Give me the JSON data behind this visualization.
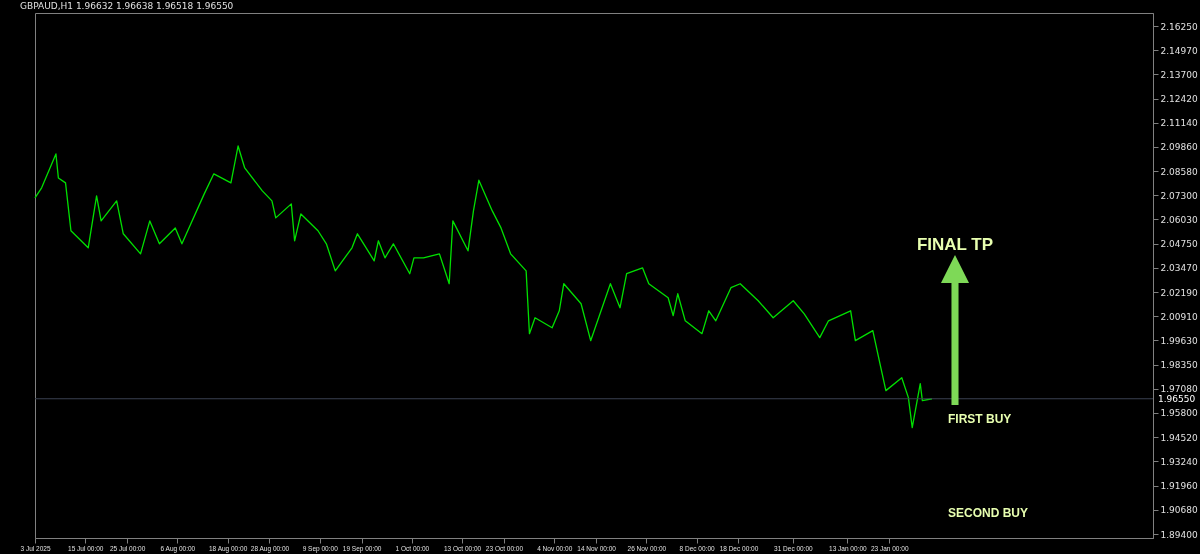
{
  "chart_data": {
    "type": "line",
    "title": "GBPAUD,H1  1.96632 1.96638 1.96518 1.96550",
    "x": [
      "2025-07-03T00:00",
      "2025-07-04T14:00",
      "2025-07-08T00:00",
      "2025-07-08T14:00",
      "2025-07-10T07:00",
      "2025-07-11T14:00",
      "2025-07-15T17:00",
      "2025-07-17T17:00",
      "2025-07-18T19:00",
      "2025-07-22T12:00",
      "2025-07-24T02:00",
      "2025-07-28T05:00",
      "2025-07-30T10:00",
      "2025-08-01T17:00",
      "2025-08-05T12:00",
      "2025-08-07T02:00",
      "2025-08-12T10:00",
      "2025-08-14T17:00",
      "2025-08-18T19:00",
      "2025-08-20T12:00",
      "2025-08-22T02:00",
      "2025-08-26T07:00",
      "2025-08-28T14:00",
      "2025-08-29T12:00",
      "2025-09-02T05:00",
      "2025-09-03T00:00",
      "2025-09-04T12:00",
      "2025-09-08T14:00",
      "2025-09-10T14:00",
      "2025-09-12T17:00",
      "2025-09-16T17:00",
      "2025-09-18T00:00",
      "2025-09-22T00:00",
      "2025-09-23T00:00",
      "2025-09-24T14:00",
      "2025-09-26T14:00",
      "2025-09-30T12:00",
      "2025-10-01T12:00",
      "2025-10-03T19:00",
      "2025-10-07T14:00",
      "2025-10-09T22:00",
      "2025-10-10T19:00",
      "2025-10-14T10:00",
      "2025-10-15T17:00",
      "2025-10-17T00:00",
      "2025-10-20T05:00",
      "2025-10-22T07:00",
      "2025-10-24T14:00",
      "2025-10-28T07:00",
      "2025-10-29T02:00",
      "2025-10-30T10:00",
      "2025-11-03T12:00",
      "2025-11-05T05:00",
      "2025-11-06T07:00",
      "2025-11-10T10:00",
      "2025-11-12T17:00",
      "2025-11-17T10:00",
      "2025-11-19T17:00",
      "2025-11-21T07:00",
      "2025-11-25T02:00",
      "2025-11-26T14:00",
      "2025-12-01T05:00",
      "2025-12-02T10:00",
      "2025-12-03T12:00",
      "2025-12-05T07:00",
      "2025-12-09T07:00",
      "2025-12-10T22:00",
      "2025-12-12T14:00",
      "2025-12-16T05:00",
      "2025-12-18T10:00",
      "2025-12-22T17:00",
      "2025-12-26T07:00",
      "2025-12-31T02:00",
      "2026-01-02T17:00",
      "2026-01-06T10:00",
      "2026-01-08T12:00",
      "2026-01-13T19:00",
      "2026-01-14T22:00",
      "2026-01-19T02:00",
      "2026-01-21T00:00",
      "2026-01-22T05:00",
      "2026-01-26T00:00",
      "2026-01-27T14:00",
      "2026-01-28T12:00",
      "2026-01-30T10:00",
      "2026-01-30T22:00",
      "2026-02-02T05:00"
    ],
    "series": [
      {
        "color": "#00e000",
        "values": [
          2.0717,
          2.077,
          2.0949,
          2.0822,
          2.0796,
          2.0543,
          2.0453,
          2.0727,
          2.0595,
          2.0701,
          2.0527,
          2.0421,
          2.0595,
          2.0474,
          2.0558,
          2.0474,
          2.0738,
          2.0844,
          2.0796,
          2.0991,
          2.0875,
          2.0754,
          2.0701,
          2.0611,
          2.0685,
          2.049,
          2.0632,
          2.0543,
          2.0474,
          2.0331,
          2.0453,
          2.0527,
          2.0384,
          2.049,
          2.04,
          2.0474,
          2.0316,
          2.04,
          2.04,
          2.0421,
          2.0263,
          2.0595,
          2.0437,
          2.0648,
          2.081,
          2.0648,
          2.0558,
          2.0421,
          2.0331,
          1.9999,
          2.0083,
          2.003,
          2.012,
          2.0263,
          2.0157,
          1.9962,
          2.0263,
          2.0136,
          2.0316,
          2.0347,
          2.0263,
          2.0189,
          2.0094,
          2.021,
          2.0067,
          1.9999,
          2.012,
          2.0067,
          2.0242,
          2.0263,
          2.0173,
          2.0083,
          2.0173,
          2.0104,
          1.9978,
          2.0067,
          2.012,
          1.9962,
          2.0015,
          1.9819,
          1.9698,
          1.9766,
          1.9661,
          1.9502,
          1.9735,
          1.9645,
          1.9655
        ]
      }
    ],
    "xlim": [
      "2025-07-03T00:00",
      "2026-03-27T00:00"
    ],
    "xticks": [
      {
        "value": "2025-07-03T00:00",
        "label": "3 Jul 2025"
      },
      {
        "value": "2025-07-15T00:00",
        "label": "15 Jul 00:00"
      },
      {
        "value": "2025-07-25T00:00",
        "label": "25 Jul 00:00"
      },
      {
        "value": "2025-08-06T00:00",
        "label": "6 Aug 00:00"
      },
      {
        "value": "2025-08-18T00:00",
        "label": "18 Aug 00:00"
      },
      {
        "value": "2025-08-28T00:00",
        "label": "28 Aug 00:00"
      },
      {
        "value": "2025-09-09T00:00",
        "label": "9 Sep 00:00"
      },
      {
        "value": "2025-09-19T00:00",
        "label": "19 Sep 00:00"
      },
      {
        "value": "2025-10-01T00:00",
        "label": "1 Oct 00:00"
      },
      {
        "value": "2025-10-13T00:00",
        "label": "13 Oct 00:00"
      },
      {
        "value": "2025-10-23T00:00",
        "label": "23 Oct 00:00"
      },
      {
        "value": "2025-11-04T00:00",
        "label": "4 Nov 00:00"
      },
      {
        "value": "2025-11-14T00:00",
        "label": "14 Nov 00:00"
      },
      {
        "value": "2025-11-26T00:00",
        "label": "26 Nov 00:00"
      },
      {
        "value": "2025-12-08T00:00",
        "label": "8 Dec 00:00"
      },
      {
        "value": "2025-12-18T00:00",
        "label": "18 Dec 00:00"
      },
      {
        "value": "2025-12-31T00:00",
        "label": "31 Dec 00:00"
      },
      {
        "value": "2026-01-13T00:00",
        "label": "13 Jan 00:00"
      },
      {
        "value": "2026-01-23T00:00",
        "label": "23 Jan 00:00"
      }
    ],
    "ylim": [
      1.8919,
      2.1694
    ],
    "yticks": [
      {
        "value": 1.894,
        "label": "1.89400"
      },
      {
        "value": 1.9068,
        "label": "1.90680"
      },
      {
        "value": 1.9196,
        "label": "1.91960"
      },
      {
        "value": 1.9324,
        "label": "1.93240"
      },
      {
        "value": 1.9452,
        "label": "1.94520"
      },
      {
        "value": 1.958,
        "label": "1.95800"
      },
      {
        "value": 1.9708,
        "label": "1.97080"
      },
      {
        "value": 1.9835,
        "label": "1.98350"
      },
      {
        "value": 1.9963,
        "label": "1.99630"
      },
      {
        "value": 2.0091,
        "label": "2.00910"
      },
      {
        "value": 2.0219,
        "label": "2.02190"
      },
      {
        "value": 2.0347,
        "label": "2.03470"
      },
      {
        "value": 2.0475,
        "label": "2.04750"
      },
      {
        "value": 2.0603,
        "label": "2.06030"
      },
      {
        "value": 2.073,
        "label": "2.07300"
      },
      {
        "value": 2.0858,
        "label": "2.08580"
      },
      {
        "value": 2.0986,
        "label": "2.09860"
      },
      {
        "value": 2.1114,
        "label": "2.11140"
      },
      {
        "value": 2.1242,
        "label": "2.12420"
      },
      {
        "value": 2.137,
        "label": "2.13700"
      },
      {
        "value": 2.1497,
        "label": "2.14970"
      },
      {
        "value": 2.1625,
        "label": "2.16250"
      }
    ],
    "ref_lines": [
      {
        "axis": "y",
        "value": 1.9655,
        "label": "1.96550",
        "color": "#3a4150"
      }
    ],
    "annotations": [
      "FINAL TP",
      "FIRST BUY",
      "SECOND BUY"
    ],
    "grid": false,
    "marker": "none",
    "line_style": "solid"
  }
}
